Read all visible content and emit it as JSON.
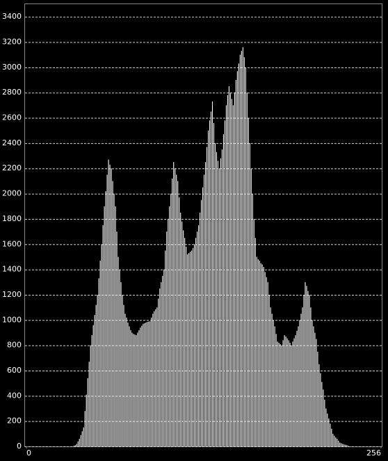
{
  "chart_data": {
    "type": "histogram",
    "color": "#ffffff",
    "grid": true,
    "xlim": [
      0,
      256
    ],
    "xticks": [
      0,
      256
    ],
    "ylim": [
      0,
      3500
    ],
    "yticks": [
      0,
      200,
      400,
      600,
      800,
      1000,
      1200,
      1400,
      1600,
      1800,
      2000,
      2200,
      2400,
      2600,
      2800,
      3000,
      3200,
      3400
    ],
    "bins": [
      0,
      1,
      2,
      3,
      4,
      5,
      6,
      7,
      8,
      9,
      10,
      11,
      12,
      13,
      14,
      15,
      16,
      17,
      18,
      19,
      20,
      21,
      22,
      23,
      24,
      25,
      26,
      27,
      28,
      29,
      30,
      31,
      32,
      33,
      34,
      35,
      36,
      37,
      38,
      39,
      40,
      41,
      42,
      43,
      44,
      45,
      46,
      47,
      48,
      49,
      50,
      51,
      52,
      53,
      54,
      55,
      56,
      57,
      58,
      59,
      60,
      61,
      62,
      63,
      64,
      65,
      66,
      67,
      68,
      69,
      70,
      71,
      72,
      73,
      74,
      75,
      76,
      77,
      78,
      79,
      80,
      81,
      82,
      83,
      84,
      85,
      86,
      87,
      88,
      89,
      90,
      91,
      92,
      93,
      94,
      95,
      96,
      97,
      98,
      99,
      100,
      101,
      102,
      103,
      104,
      105,
      106,
      107,
      108,
      109,
      110,
      111,
      112,
      113,
      114,
      115,
      116,
      117,
      118,
      119,
      120,
      121,
      122,
      123,
      124,
      125,
      126,
      127,
      128,
      129,
      130,
      131,
      132,
      133,
      134,
      135,
      136,
      137,
      138,
      139,
      140,
      141,
      142,
      143,
      144,
      145,
      146,
      147,
      148,
      149,
      150,
      151,
      152,
      153,
      154,
      155,
      156,
      157,
      158,
      159,
      160,
      161,
      162,
      163,
      164,
      165,
      166,
      167,
      168,
      169,
      170,
      171,
      172,
      173,
      174,
      175,
      176,
      177,
      178,
      179,
      180,
      181,
      182,
      183,
      184,
      185,
      186,
      187,
      188,
      189,
      190,
      191,
      192,
      193,
      194,
      195,
      196,
      197,
      198,
      199,
      200,
      201,
      202,
      203,
      204,
      205,
      206,
      207,
      208,
      209,
      210,
      211,
      212,
      213,
      214,
      215,
      216,
      217,
      218,
      219,
      220,
      221,
      222,
      223,
      224,
      225,
      226,
      227,
      228,
      229,
      230,
      231,
      232,
      233,
      234,
      235,
      236,
      237,
      238,
      239,
      240,
      241,
      242,
      243,
      244,
      245,
      246,
      247,
      248,
      249,
      250,
      251,
      252,
      253,
      254,
      255,
      256
    ],
    "values": [
      0,
      0,
      0,
      0,
      0,
      0,
      0,
      0,
      0,
      0,
      0,
      0,
      0,
      0,
      0,
      0,
      0,
      0,
      0,
      0,
      0,
      0,
      0,
      0,
      0,
      0,
      0,
      0,
      0,
      0,
      0,
      0,
      0,
      0,
      5,
      10,
      20,
      40,
      60,
      90,
      120,
      150,
      280,
      410,
      540,
      670,
      800,
      880,
      960,
      1040,
      1120,
      1200,
      1330,
      1470,
      1600,
      1750,
      1900,
      2020,
      2150,
      2270,
      2230,
      2200,
      2100,
      2000,
      1900,
      1700,
      1500,
      1400,
      1300,
      1200,
      1120,
      1050,
      1020,
      980,
      950,
      920,
      900,
      890,
      885,
      880,
      900,
      920,
      940,
      955,
      970,
      975,
      980,
      985,
      988,
      990,
      1020,
      1050,
      1070,
      1085,
      1100,
      1170,
      1250,
      1300,
      1350,
      1400,
      1550,
      1700,
      1800,
      1900,
      2000,
      2120,
      2250,
      2200,
      2150,
      2100,
      1970,
      1850,
      1780,
      1710,
      1650,
      1580,
      1520,
      1530,
      1540,
      1550,
      1570,
      1600,
      1650,
      1700,
      1750,
      1850,
      1950,
      2050,
      2150,
      2250,
      2370,
      2500,
      2580,
      2650,
      2730,
      2560,
      2400,
      2330,
      2260,
      2200,
      2280,
      2350,
      2470,
      2580,
      2700,
      2780,
      2850,
      2800,
      2750,
      2700,
      2800,
      2900,
      2970,
      3030,
      3100,
      3130,
      3160,
      3080,
      3000,
      2800,
      2600,
      2400,
      2200,
      2000,
      1800,
      1650,
      1500,
      1480,
      1470,
      1450,
      1440,
      1420,
      1380,
      1340,
      1300,
      1200,
      1100,
      1050,
      1000,
      950,
      890,
      830,
      820,
      810,
      800,
      840,
      880,
      870,
      855,
      840,
      820,
      800,
      830,
      855,
      880,
      915,
      950,
      1000,
      1050,
      1100,
      1200,
      1300,
      1270,
      1230,
      1200,
      1100,
      1000,
      950,
      900,
      850,
      750,
      650,
      580,
      510,
      450,
      370,
      300,
      260,
      220,
      180,
      140,
      100,
      85,
      70,
      60,
      45,
      30,
      25,
      20,
      16,
      13,
      10,
      5,
      0,
      0,
      0,
      0,
      0,
      0,
      0,
      0,
      0,
      0,
      0,
      0,
      0,
      0,
      0,
      0,
      0,
      0,
      0,
      0,
      0,
      0,
      0
    ]
  }
}
